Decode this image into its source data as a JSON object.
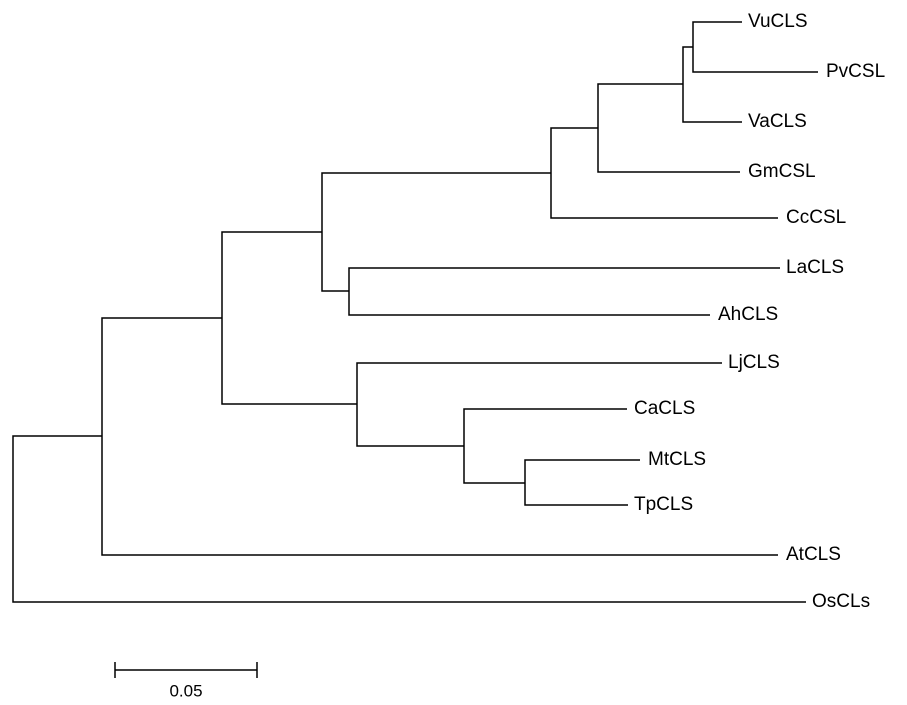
{
  "tree": {
    "leaves": [
      "VuCLS",
      "PvCSL",
      "VaCLS",
      "GmCSL",
      "CcCSL",
      "LaCLS",
      "AhCLS",
      "LjCLS",
      "CaCLS",
      "MtCLS",
      "TpCLS",
      "AtCLS",
      "OsCLs"
    ]
  },
  "scale_bar": {
    "label": "0.05"
  }
}
